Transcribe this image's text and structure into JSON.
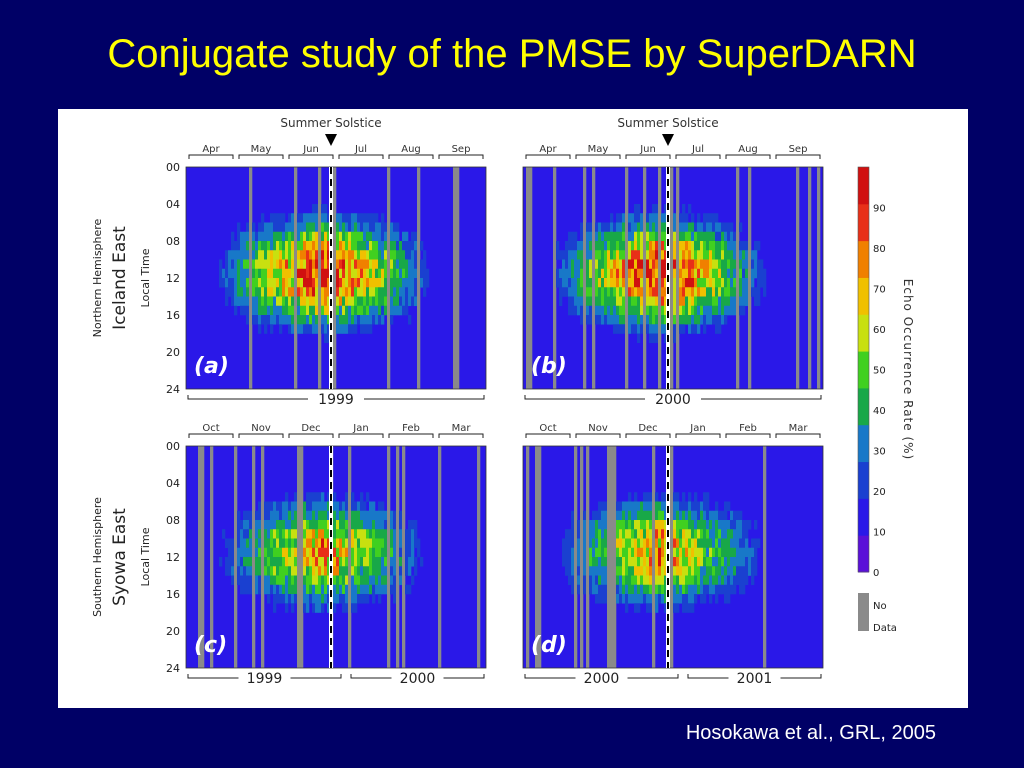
{
  "slide": {
    "title": "Conjugate study of the PMSE by SuperDARN",
    "citation": "Hosokawa et al., GRL, 2005"
  },
  "figure": {
    "solstice_label": "Summer Solstice",
    "row_labels": [
      {
        "hemisphere": "Northern Hemisphere",
        "station": "Iceland East",
        "axis": "Local Time"
      },
      {
        "hemisphere": "Southern Hemisphere",
        "station": "Syowa East",
        "axis": "Local Time"
      }
    ],
    "time_ticks": [
      "00",
      "04",
      "08",
      "12",
      "16",
      "20",
      "24"
    ],
    "panels": [
      {
        "id": "a",
        "label": "(a)",
        "months": [
          "Apr",
          "May",
          "Jun",
          "Jul",
          "Aug",
          "Sep"
        ],
        "years": [
          {
            "label": "1999"
          }
        ]
      },
      {
        "id": "b",
        "label": "(b)",
        "months": [
          "Apr",
          "May",
          "Jun",
          "Jul",
          "Aug",
          "Sep"
        ],
        "years": [
          {
            "label": "2000"
          }
        ]
      },
      {
        "id": "c",
        "label": "(c)",
        "months": [
          "Oct",
          "Nov",
          "Dec",
          "Jan",
          "Feb",
          "Mar"
        ],
        "years": [
          {
            "label": "1999"
          },
          {
            "label": "2000"
          }
        ]
      },
      {
        "id": "d",
        "label": "(d)",
        "months": [
          "Oct",
          "Nov",
          "Dec",
          "Jan",
          "Feb",
          "Mar"
        ],
        "years": [
          {
            "label": "2000"
          },
          {
            "label": "2001"
          }
        ]
      }
    ],
    "colorbar": {
      "title": "Echo Occurrence Rate (%)",
      "ticks": [
        "0",
        "10",
        "20",
        "30",
        "40",
        "50",
        "60",
        "70",
        "80",
        "90"
      ],
      "nodata_lines": [
        "No",
        "Data"
      ],
      "colors": [
        "#5a10d8",
        "#2a18e8",
        "#1a40d0",
        "#1878c8",
        "#18a848",
        "#40d020",
        "#c8e010",
        "#f0c000",
        "#f08000",
        "#e83018",
        "#d01010"
      ],
      "nodata_color": "#8a8a8a"
    }
  }
}
